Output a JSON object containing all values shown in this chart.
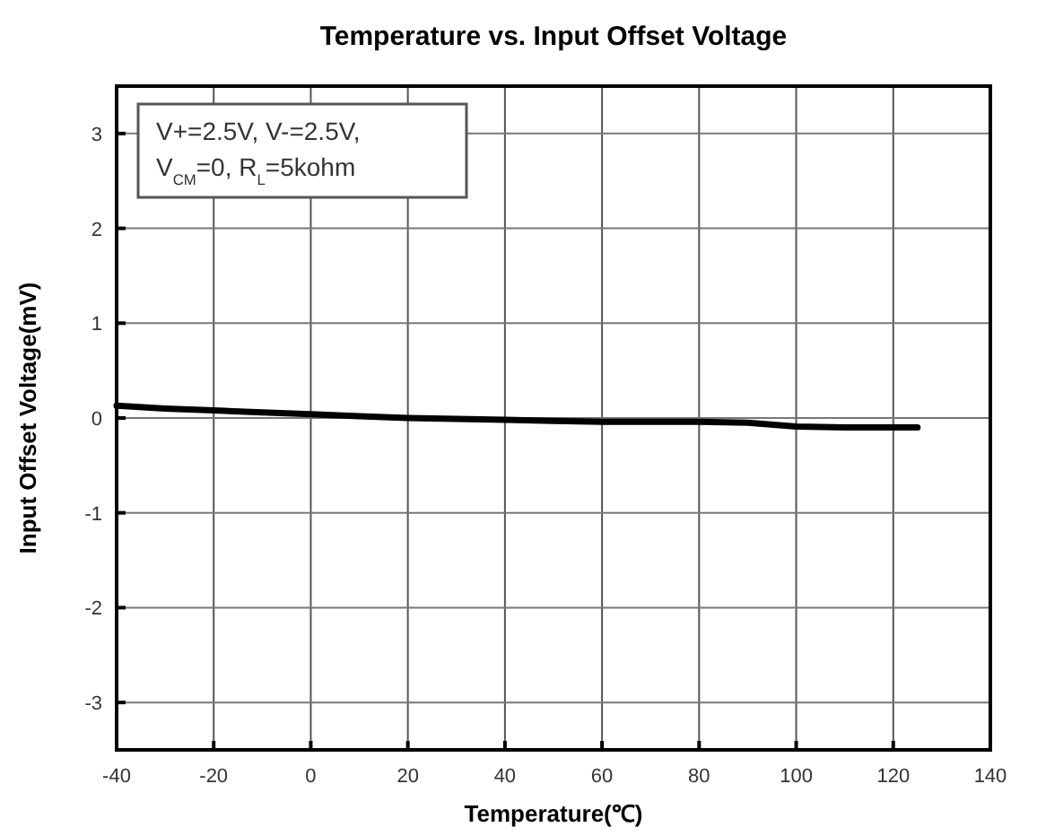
{
  "chart_data": {
    "type": "line",
    "title": "Temperature vs. Input Offset Voltage",
    "xlabel": "Temperature(℃)",
    "ylabel": "Input Offset Voltage(mV)",
    "annotations": [
      "V+=2.5V, V-=2.5V,",
      "V$_{CM}$=0, R$_{L}$=5kohm"
    ],
    "series": [
      {
        "color": "#000000",
        "x": [
          -40,
          -30,
          -20,
          -10,
          0,
          10,
          20,
          30,
          40,
          50,
          60,
          70,
          80,
          90,
          100,
          110,
          125
        ],
        "values": [
          0.13,
          0.1,
          0.08,
          0.06,
          0.04,
          0.02,
          0,
          -0.01,
          -0.02,
          -0.03,
          -0.04,
          -0.04,
          -0.04,
          -0.05,
          -0.09,
          -0.1,
          -0.1
        ]
      }
    ],
    "xlim": [
      -40,
      140
    ],
    "xticks": [
      -40,
      -20,
      0,
      20,
      40,
      60,
      80,
      100,
      120,
      140
    ],
    "ylim": [
      -3.5,
      3.5
    ],
    "yticks": [
      -3,
      -2,
      -1,
      0,
      1,
      2,
      3
    ],
    "grid": true,
    "line_style": "solid",
    "marker": "none"
  }
}
